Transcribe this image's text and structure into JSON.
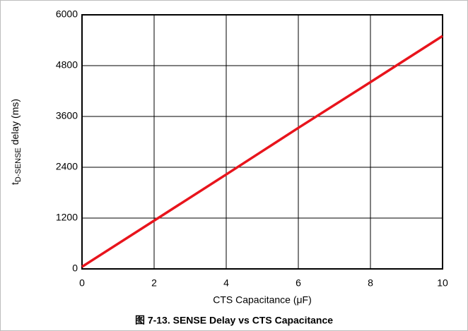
{
  "chart_data": {
    "type": "line",
    "caption": "图 7-13. SENSE Delay vs CTS Capacitance",
    "xlabel": "CTS Capacitance (μF)",
    "ylabel": {
      "main": "t",
      "sub": "D-SENSE",
      "rest": " delay (ms)"
    },
    "x": [
      0,
      2,
      4,
      6,
      8,
      10
    ],
    "values": [
      50,
      1140,
      2230,
      3330,
      4410,
      5500
    ],
    "color": "#e8141c",
    "xlim": [
      0,
      10
    ],
    "xticks": [
      0,
      2,
      4,
      6,
      8,
      10
    ],
    "ylim": [
      0,
      6000
    ],
    "yticks": [
      0,
      1200,
      2400,
      3600,
      4800,
      6000
    ],
    "grid": true
  }
}
